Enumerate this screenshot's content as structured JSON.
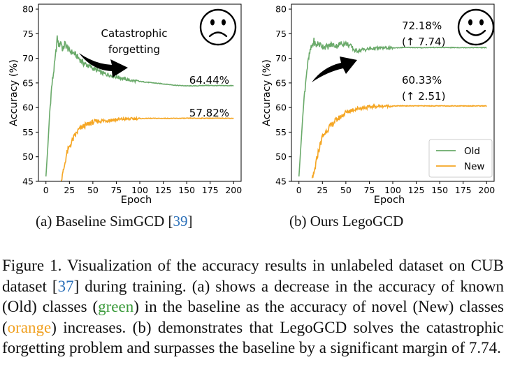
{
  "chart_data": [
    {
      "type": "line",
      "panel": "a",
      "xlabel": "Epoch",
      "ylabel": "Accuracy (%)",
      "xlim": [
        -8,
        208
      ],
      "ylim": [
        45,
        81
      ],
      "xticks": [
        "0",
        "25",
        "50",
        "75",
        "100",
        "125",
        "150",
        "175",
        "200"
      ],
      "yticks": [
        "45",
        "50",
        "55",
        "60",
        "65",
        "70",
        "75",
        "80"
      ],
      "legend": "none",
      "grid": false,
      "series": [
        {
          "color": "#6aaa6a",
          "x": [
            0,
            2,
            4,
            6,
            8,
            10,
            12,
            14,
            16,
            18,
            20,
            25,
            30,
            35,
            40,
            45,
            50,
            60,
            70,
            80,
            90,
            100,
            110,
            120,
            130,
            140,
            150,
            160,
            170,
            180,
            190,
            200
          ],
          "y": [
            46,
            52,
            59,
            64,
            67,
            70,
            74,
            72.5,
            73.5,
            71.5,
            73,
            71.5,
            71,
            70,
            69,
            68.5,
            68,
            67,
            66.5,
            66,
            65.5,
            65.3,
            65.1,
            64.9,
            64.7,
            64.5,
            64.4,
            64.4,
            64.5,
            64.45,
            64.45,
            64.44
          ]
        },
        {
          "color": "#f5a623",
          "x": [
            16,
            18,
            20,
            22,
            25,
            30,
            35,
            40,
            45,
            50,
            55,
            60,
            70,
            80,
            90,
            100,
            110,
            120,
            130,
            140,
            150,
            160,
            170,
            180,
            190,
            200
          ],
          "y": [
            45,
            46.5,
            48.5,
            50.5,
            52,
            54,
            55.5,
            56.2,
            56.6,
            57,
            57.2,
            57.3,
            57.5,
            57.6,
            57.7,
            57.75,
            57.8,
            57.8,
            57.8,
            57.8,
            57.82,
            57.82,
            57.82,
            57.82,
            57.82,
            57.82
          ]
        }
      ],
      "annotations": {
        "forgetting_line1": "Catastrophic",
        "forgetting_line2": "forgetting",
        "old_value": "64.44%",
        "new_value": "57.82%"
      },
      "emoji": "sad-face-icon"
    },
    {
      "type": "line",
      "panel": "b",
      "xlabel": "Epoch",
      "ylabel": "Accuracy (%)",
      "xlim": [
        -8,
        208
      ],
      "ylim": [
        45,
        81
      ],
      "xticks": [
        "0",
        "25",
        "50",
        "75",
        "100",
        "125",
        "150",
        "175",
        "200"
      ],
      "yticks": [
        "45",
        "50",
        "55",
        "60",
        "65",
        "70",
        "75",
        "80"
      ],
      "legend": "bottom-right",
      "grid": false,
      "series": [
        {
          "name": "Old",
          "color": "#6aaa6a",
          "x": [
            0,
            2,
            4,
            6,
            8,
            10,
            12,
            14,
            16,
            18,
            20,
            25,
            30,
            35,
            40,
            45,
            50,
            55,
            60,
            70,
            80,
            90,
            100,
            110,
            120,
            130,
            140,
            150,
            160,
            170,
            180,
            190,
            200
          ],
          "y": [
            46,
            52,
            58,
            63,
            67,
            69.5,
            71.5,
            72.5,
            73.5,
            72.5,
            73,
            72.5,
            72.3,
            72.8,
            72.5,
            73,
            73,
            72.5,
            71.5,
            71.8,
            72,
            72.1,
            72.1,
            72.2,
            72.2,
            72.15,
            72.2,
            72.2,
            72.18,
            72.18,
            72.18,
            72.18,
            72.18
          ]
        },
        {
          "name": "New",
          "color": "#f5a623",
          "x": [
            14,
            16,
            18,
            20,
            22,
            25,
            30,
            35,
            40,
            45,
            50,
            55,
            60,
            70,
            80,
            90,
            100,
            110,
            120,
            130,
            140,
            150,
            160,
            170,
            180,
            190,
            200
          ],
          "y": [
            45,
            46.5,
            48.5,
            50.5,
            52,
            54,
            55.5,
            56.5,
            57.5,
            58.2,
            59,
            59.4,
            59.7,
            60,
            60.2,
            60.3,
            60.3,
            60.35,
            60.33,
            60.33,
            60.33,
            60.33,
            60.33,
            60.33,
            60.33,
            60.33,
            60.33
          ]
        }
      ],
      "annotations": {
        "old_value": "72.18%",
        "old_gain": "(↑ 7.74)",
        "new_value": "60.33%",
        "new_gain": "(↑ 2.51)"
      },
      "emoji": "happy-face-icon"
    }
  ],
  "subcaptions": {
    "a_text": "(a) Baseline SimGCD [",
    "a_ref": "39",
    "a_close": "]",
    "b_text": "(b) Ours LegoGCD"
  },
  "caption": {
    "p1": "Figure 1. Visualization of the accuracy results in unlabeled dataset on CUB dataset [",
    "ref": "37",
    "p2": "] during training. (a) shows a decrease in the accuracy of known (Old) classes (",
    "green_word": "green",
    "p3": ") in the baseline as the accuracy of novel (New) classes (",
    "orange_word": "orange",
    "p4": ") increases. (b) demonstrates that LegoGCD solves the catastrophic forgetting problem and surpasses the baseline by a significant margin of 7.74."
  }
}
